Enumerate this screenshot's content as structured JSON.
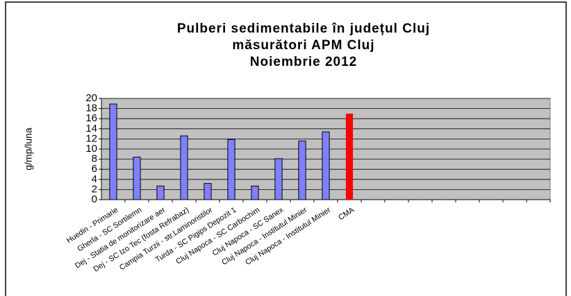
{
  "chart_data": {
    "type": "bar",
    "title": [
      "Pulberi sedimentabile în județul Cluj",
      "măsurători APM Cluj",
      "Noiembrie 2012"
    ],
    "y_label": "g/mp/luna",
    "categories": [
      "Huedin - Primarie",
      "Gherla - SC Sortilemn",
      "Dej - Statia de monitorizare aer",
      "Dej - SC Izo Tec (fosta Refrabaz)",
      "Campia Turzii - str.Laminoristilor",
      "Turda - SC Pigips Depozit 1",
      "Cluj Napoca - SC Carbochim",
      "Cluj Napoca - SC Sanex",
      "Cluj Napoca - Institutul Minier",
      "Cluj Napoca - Institutul Minier",
      "CMA",
      null,
      null,
      null,
      null,
      null,
      null,
      null,
      null
    ],
    "values": [
      18.9,
      8.4,
      2.7,
      12.6,
      3.2,
      11.9,
      2.7,
      8.1,
      11.6,
      13.4,
      17,
      null,
      null,
      null,
      null,
      null,
      null,
      null,
      null
    ],
    "colors": [
      "#8080ff",
      "#8080ff",
      "#8080ff",
      "#8080ff",
      "#8080ff",
      "#8080ff",
      "#8080ff",
      "#8080ff",
      "#8080ff",
      "#8080ff",
      "#ff0000",
      null,
      null,
      null,
      null,
      null,
      null,
      null,
      null
    ],
    "ylim": [
      0,
      20
    ],
    "yticks": [
      0,
      2,
      4,
      6,
      8,
      10,
      12,
      14,
      16,
      18,
      20
    ],
    "grid": true
  }
}
